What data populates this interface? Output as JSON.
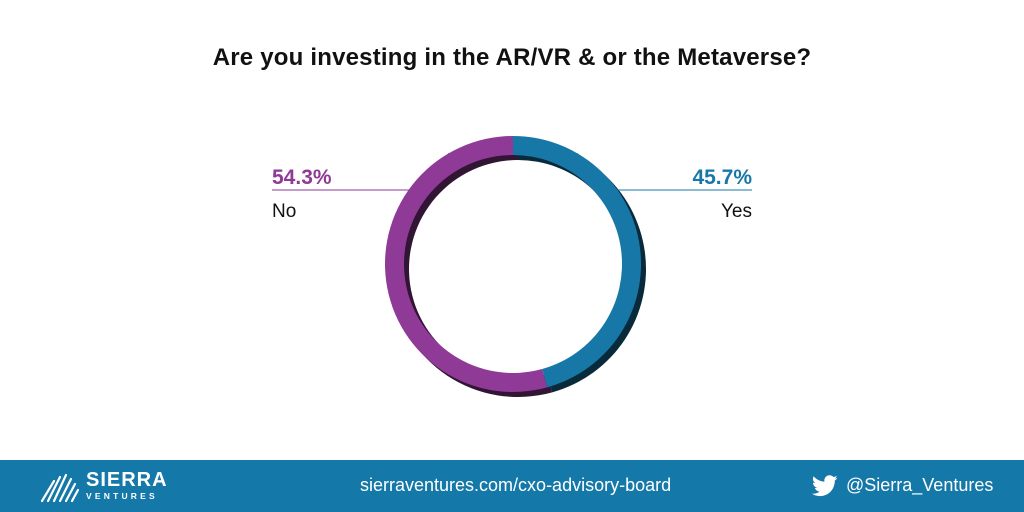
{
  "title": "Are you investing in the AR/VR & or the Metaverse?",
  "chart_data": {
    "type": "pie",
    "variant": "donut",
    "title": "Are you investing in the AR/VR & or the Metaverse?",
    "slices": [
      {
        "label": "Yes",
        "value": 45.7,
        "value_label": "45.7%",
        "color": "#1778a8"
      },
      {
        "label": "No",
        "value": 54.3,
        "value_label": "54.3%",
        "color": "#8e3a96"
      }
    ],
    "legend": "none",
    "grid": false
  },
  "footer": {
    "logo_word": "SIERRA",
    "logo_sub": "VENTURES",
    "url": "sierraventures.com/cxo-advisory-board",
    "twitter_handle": "@Sierra_Ventures",
    "background_color": "#1478a8"
  }
}
